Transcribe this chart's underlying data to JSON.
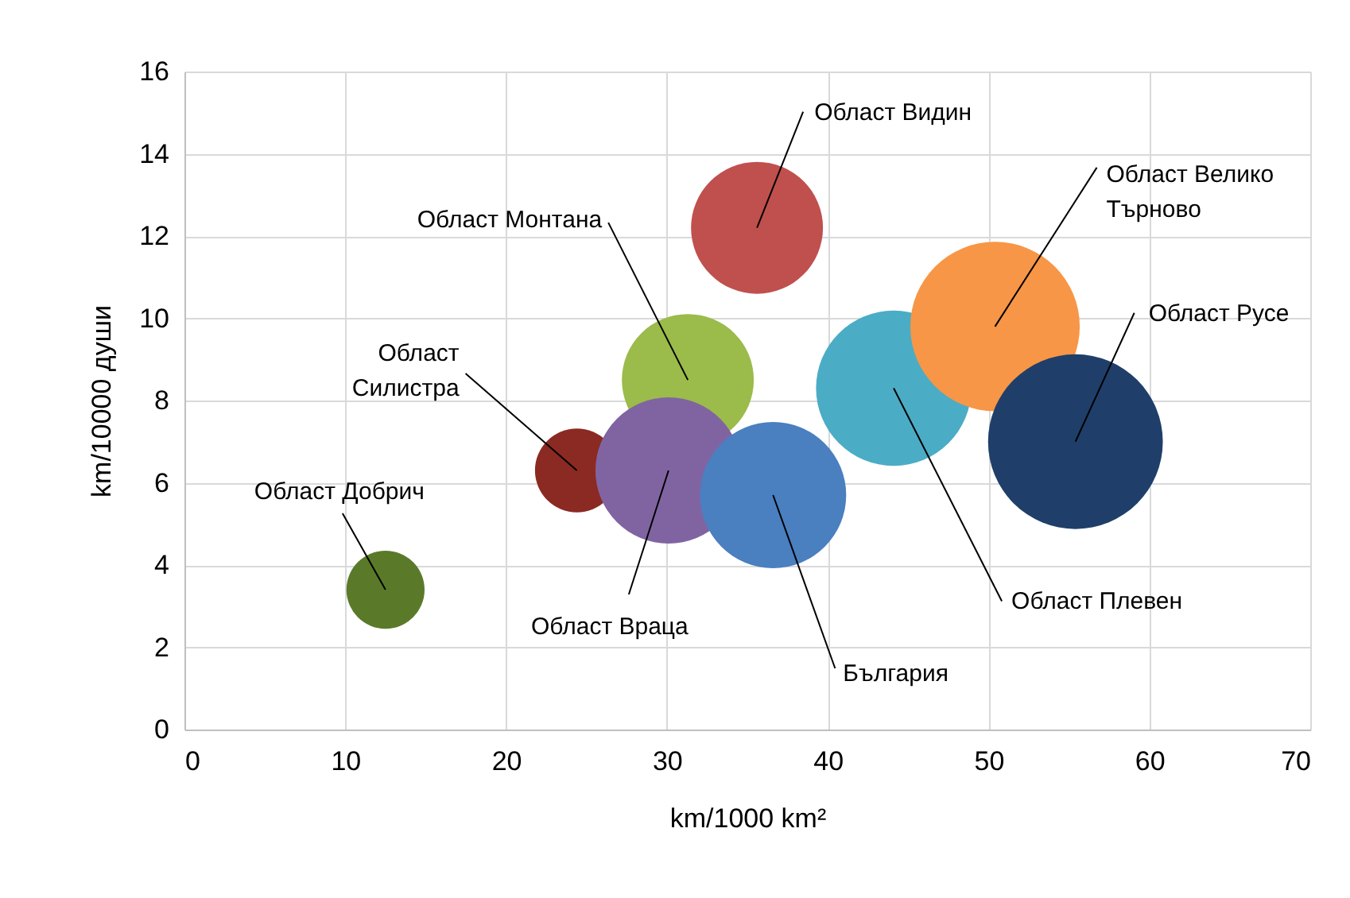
{
  "chart_data": {
    "type": "bubble",
    "xlabel": "km/1000 km²",
    "ylabel": "km/10000 души",
    "xlim": [
      0,
      70
    ],
    "xticks": [
      0,
      10,
      20,
      30,
      40,
      50,
      60,
      70
    ],
    "ylim": [
      0,
      16
    ],
    "yticks": [
      0,
      2,
      4,
      6,
      8,
      10,
      12,
      14,
      16
    ],
    "grid": true,
    "legend": false,
    "marker": "circle",
    "series": [
      {
        "name": "Област Добрич",
        "color": "#5a7a2a",
        "x": [
          12.5
        ],
        "values": [
          3.4
        ],
        "sizes": [
          0.2
        ]
      },
      {
        "name": "Област Силистра",
        "color": "#8b2a22",
        "x": [
          24.4
        ],
        "values": [
          6.3
        ],
        "sizes": [
          0.23
        ]
      },
      {
        "name": "Област Монтана",
        "color": "#9bbb4a",
        "x": [
          31.3
        ],
        "values": [
          8.5
        ],
        "sizes": [
          0.57
        ]
      },
      {
        "name": "Област Враца",
        "color": "#8064a2",
        "x": [
          30.1
        ],
        "values": [
          6.3
        ],
        "sizes": [
          0.7
        ]
      },
      {
        "name": "България",
        "color": "#4a7fc0",
        "x": [
          36.6
        ],
        "values": [
          5.7
        ],
        "sizes": [
          0.7
        ]
      },
      {
        "name": "Област Видин",
        "color": "#c0504d",
        "x": [
          35.6
        ],
        "values": [
          12.2
        ],
        "sizes": [
          0.57
        ]
      },
      {
        "name": "Област Плевен",
        "color": "#4bacc6",
        "x": [
          44.1
        ],
        "values": [
          8.3
        ],
        "sizes": [
          0.79
        ]
      },
      {
        "name": "Област Велико Търново",
        "color": "#f79646",
        "x": [
          50.4
        ],
        "values": [
          9.8
        ],
        "sizes": [
          0.94
        ]
      },
      {
        "name": "Област Русе",
        "color": "#1f3f6a",
        "x": [
          55.4
        ],
        "values": [
          7.0
        ],
        "sizes": [
          1
        ]
      }
    ]
  }
}
